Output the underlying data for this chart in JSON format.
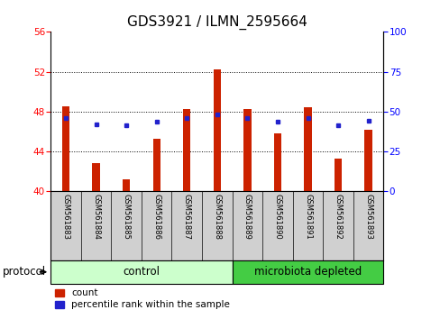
{
  "title": "GDS3921 / ILMN_2595664",
  "samples": [
    "GSM561883",
    "GSM561884",
    "GSM561885",
    "GSM561886",
    "GSM561887",
    "GSM561888",
    "GSM561889",
    "GSM561890",
    "GSM561891",
    "GSM561892",
    "GSM561893"
  ],
  "count_values": [
    48.5,
    42.8,
    41.2,
    45.3,
    48.3,
    52.2,
    48.3,
    45.8,
    48.4,
    43.3,
    46.2
  ],
  "percentile_values": [
    46.0,
    41.8,
    41.3,
    43.5,
    46.0,
    48.0,
    46.0,
    44.0,
    46.0,
    41.2,
    44.3
  ],
  "ylim_left": [
    40,
    56
  ],
  "ylim_right": [
    0,
    100
  ],
  "yticks_left": [
    40,
    44,
    48,
    52,
    56
  ],
  "yticks_right": [
    0,
    25,
    50,
    75,
    100
  ],
  "bar_color": "#cc2200",
  "marker_color": "#2222cc",
  "bar_width": 0.25,
  "n_control": 6,
  "control_label": "control",
  "microbiota_label": "microbiota depleted",
  "protocol_label": "protocol",
  "legend_count": "count",
  "legend_percentile": "percentile rank within the sample",
  "background_color": "#ffffff",
  "plot_bg_color": "#ffffff",
  "tick_area_color": "#d0d0d0",
  "control_fill": "#ccffcc",
  "microbiota_fill": "#44cc44",
  "grid_color": "#000000",
  "dotted_lines": [
    44,
    48,
    52
  ],
  "title_fontsize": 11,
  "tick_fontsize": 7.5
}
